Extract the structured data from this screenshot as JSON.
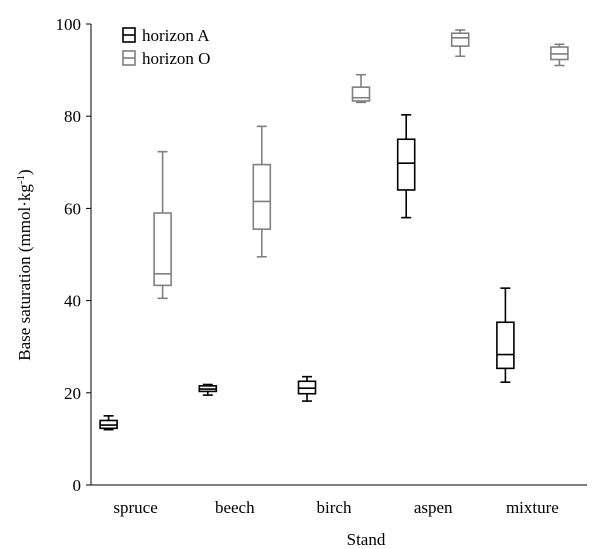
{
  "chart_data": {
    "type": "boxplot",
    "xlabel": "Stand",
    "ylabel": {
      "main": "Base saturation (mmol·kg",
      "sup": "-1",
      "close": ")"
    },
    "ylim": [
      0,
      100
    ],
    "yticks": [
      "0",
      "20",
      "40",
      "60",
      "80",
      "100"
    ],
    "ytick_values": [
      0,
      20,
      40,
      60,
      80,
      100
    ],
    "grid": false,
    "legend_position": "top-left",
    "categories": [
      "spruce",
      "beech",
      "birch",
      "aspen",
      "mixture"
    ],
    "series": [
      {
        "name": "horizon A",
        "color": "#000000",
        "boxes": [
          {
            "min": 12.0,
            "q1": 12.3,
            "median": 13.0,
            "q3": 14.0,
            "max": 15.0
          },
          {
            "min": 19.5,
            "q1": 20.3,
            "median": 20.8,
            "q3": 21.5,
            "max": 21.8
          },
          {
            "min": 18.2,
            "q1": 19.8,
            "median": 21.0,
            "q3": 22.5,
            "max": 23.5
          },
          {
            "min": 58.0,
            "q1": 64.0,
            "median": 69.8,
            "q3": 75.0,
            "max": 80.3
          },
          {
            "min": 22.3,
            "q1": 25.3,
            "median": 28.3,
            "q3": 35.3,
            "max": 42.7
          }
        ]
      },
      {
        "name": "horizon O",
        "color": "#808080",
        "boxes": [
          {
            "min": 40.5,
            "q1": 43.3,
            "median": 45.8,
            "q3": 59.0,
            "max": 72.3
          },
          {
            "min": 49.5,
            "q1": 55.5,
            "median": 61.5,
            "q3": 69.5,
            "max": 77.8
          },
          {
            "min": 83.0,
            "q1": 83.3,
            "median": 84.0,
            "q3": 86.3,
            "max": 89.0
          },
          {
            "min": 93.0,
            "q1": 95.2,
            "median": 97.0,
            "q3": 98.0,
            "max": 98.7
          },
          {
            "min": 91.0,
            "q1": 92.3,
            "median": 93.5,
            "q3": 95.0,
            "max": 95.6
          }
        ]
      }
    ]
  }
}
